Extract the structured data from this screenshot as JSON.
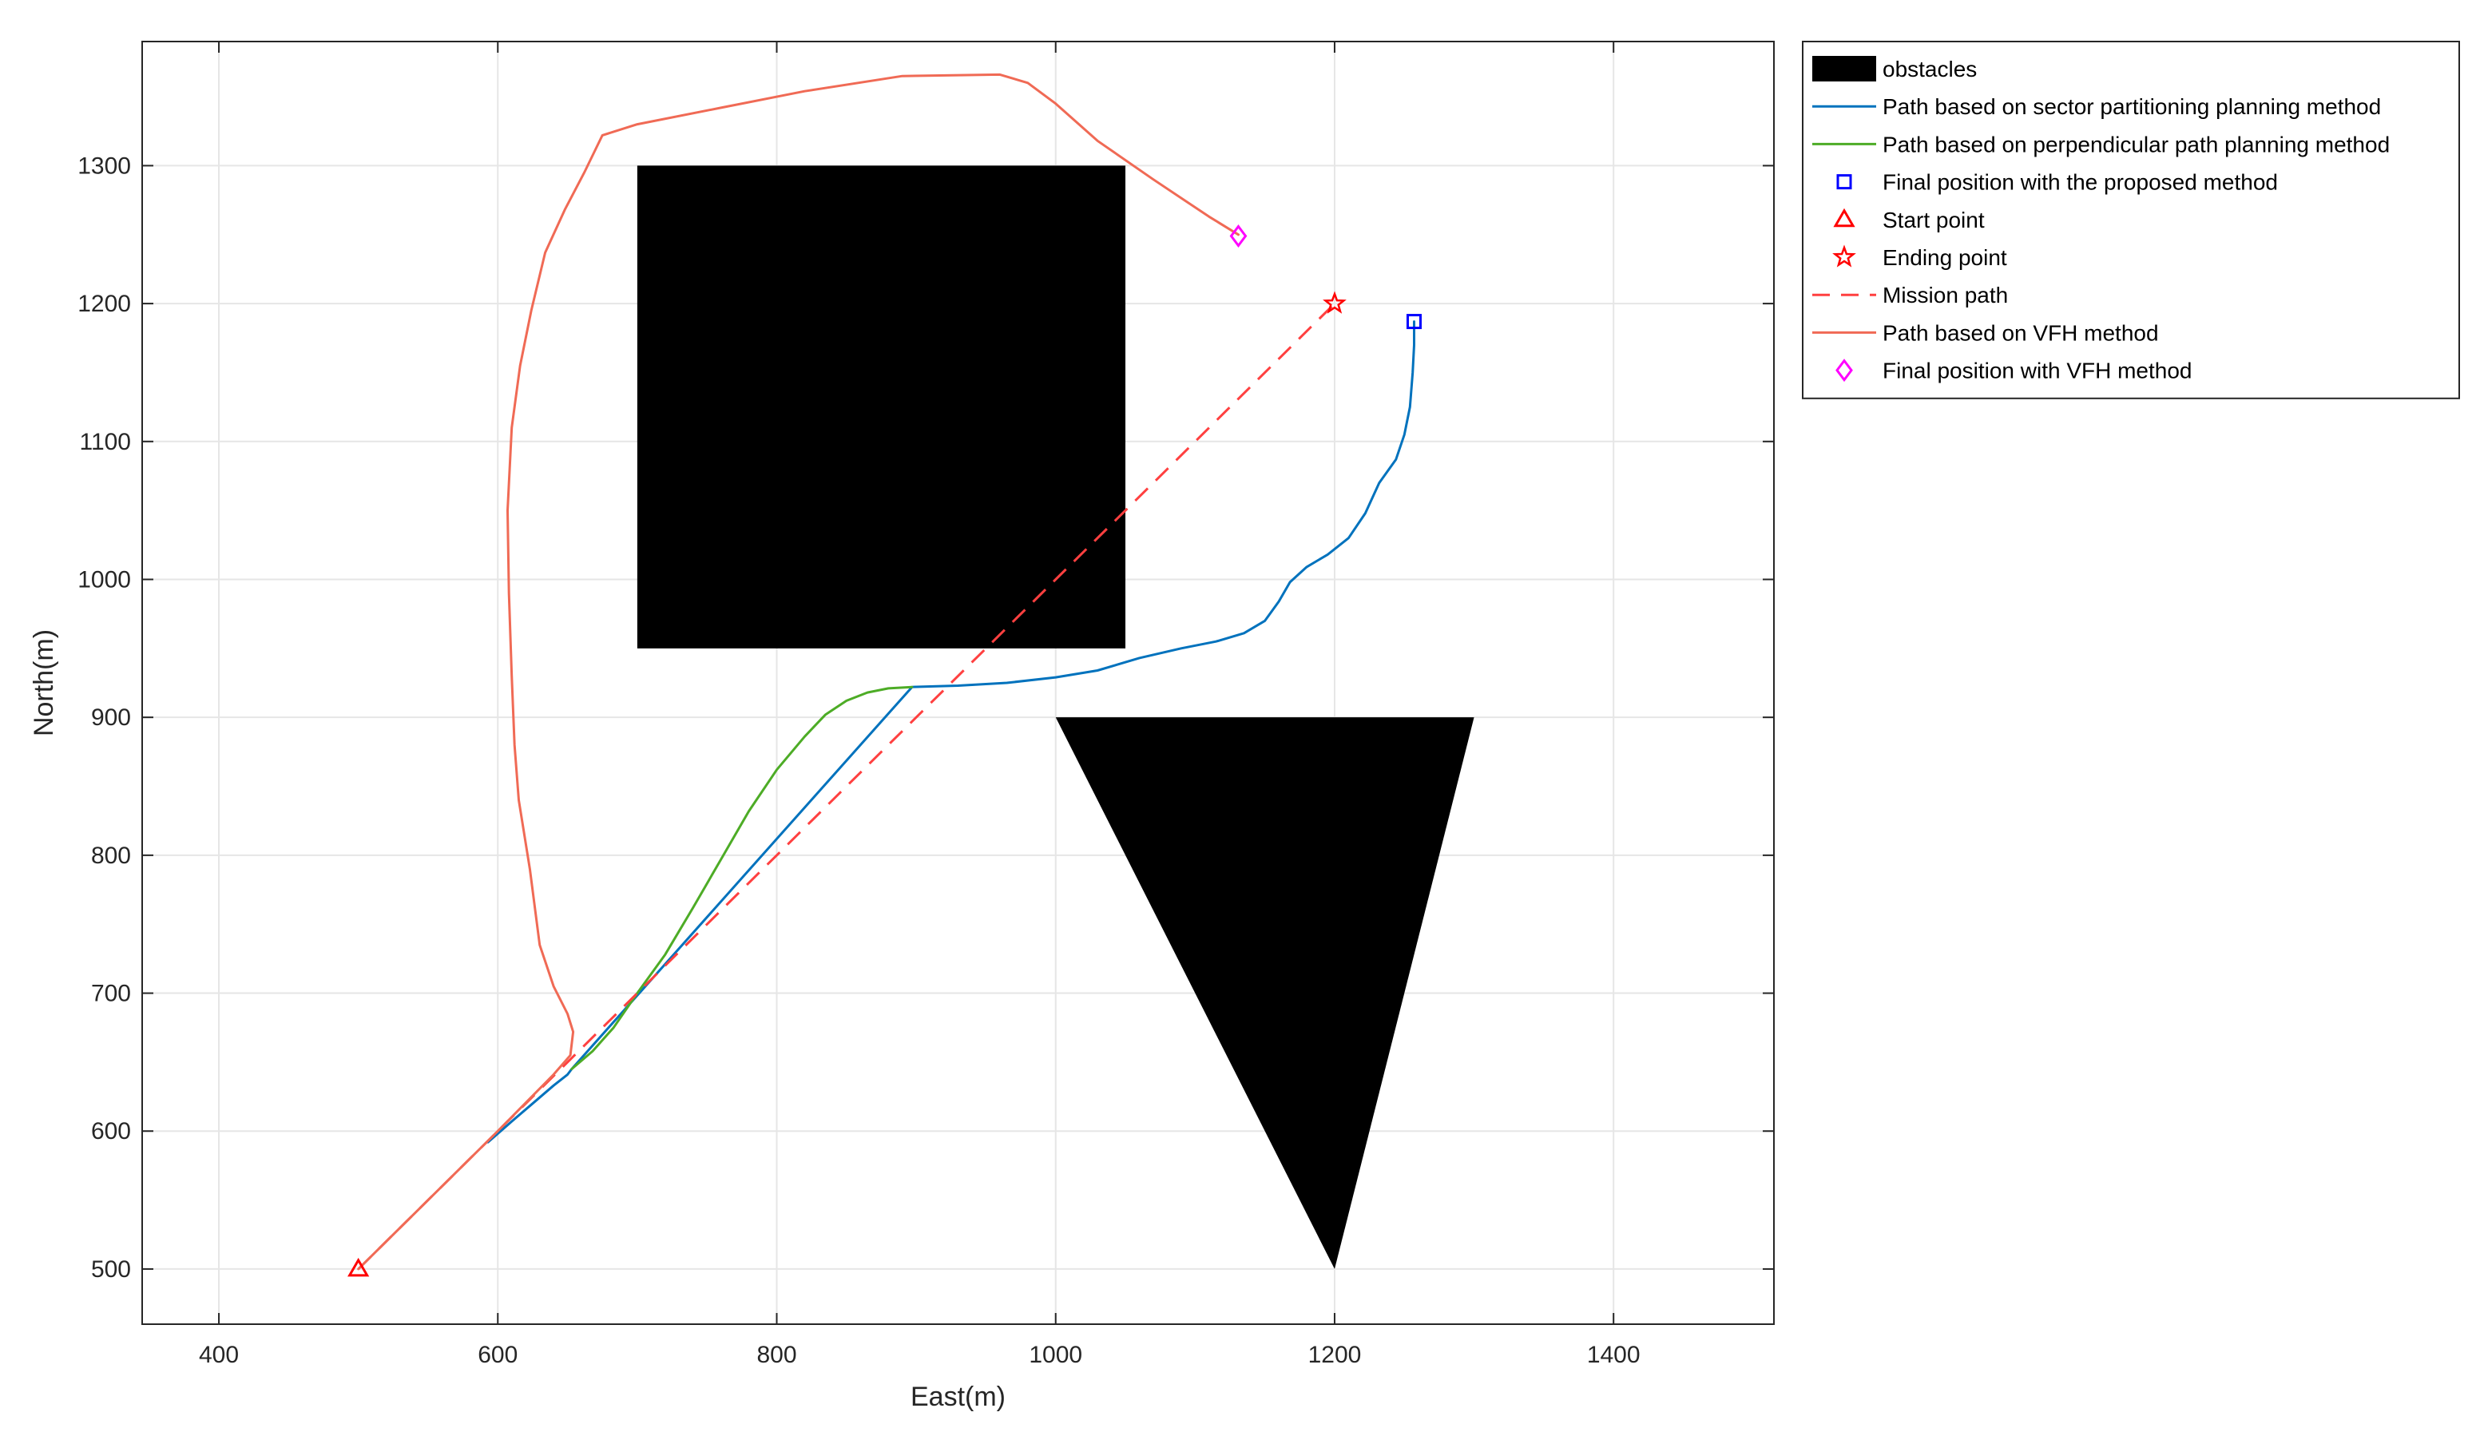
{
  "chart_data": {
    "type": "line",
    "xlabel": "East(m)",
    "ylabel": "North(m)",
    "xlim": [
      345,
      1515
    ],
    "ylim": [
      460,
      1390
    ],
    "xticks": [
      400,
      600,
      800,
      1000,
      1200,
      1400
    ],
    "yticks": [
      500,
      600,
      700,
      800,
      900,
      1000,
      1100,
      1200,
      1300
    ],
    "grid": true,
    "legend_position": "outside-top-right",
    "colors": {
      "obstacles": "#000000",
      "sector": "#0072BD",
      "perpendicular": "#4DAC26",
      "final_proposed": "#0000FF",
      "start": "#FF0000",
      "ending": "#FF0000",
      "mission": "#FF4040",
      "vfh": "#F06A55",
      "final_vfh": "#FF00FF"
    },
    "obstacles": [
      {
        "shape": "rectangle",
        "points": [
          [
            700,
            950
          ],
          [
            1050,
            950
          ],
          [
            1050,
            1300
          ],
          [
            700,
            1300
          ]
        ]
      },
      {
        "shape": "triangle",
        "points": [
          [
            1000,
            900
          ],
          [
            1300,
            900
          ],
          [
            1200,
            500
          ]
        ]
      }
    ],
    "series": [
      {
        "key": "sector",
        "name": "Path based on sector partitioning planning method",
        "points": [
          [
            593,
            592
          ],
          [
            610,
            607
          ],
          [
            625,
            620
          ],
          [
            640,
            633
          ],
          [
            650,
            641
          ],
          [
            653,
            645
          ],
          [
            897,
            922
          ],
          [
            930,
            923
          ],
          [
            965,
            925
          ],
          [
            1000,
            929
          ],
          [
            1030,
            934
          ],
          [
            1060,
            943
          ],
          [
            1090,
            950
          ],
          [
            1115,
            955
          ],
          [
            1135,
            961
          ],
          [
            1150,
            970
          ],
          [
            1160,
            984
          ],
          [
            1168,
            998
          ],
          [
            1180,
            1009
          ],
          [
            1195,
            1018
          ],
          [
            1210,
            1030
          ],
          [
            1222,
            1048
          ],
          [
            1232,
            1070
          ],
          [
            1244,
            1087
          ],
          [
            1250,
            1105
          ],
          [
            1254,
            1125
          ],
          [
            1256,
            1150
          ],
          [
            1257,
            1170
          ],
          [
            1257,
            1187
          ]
        ]
      },
      {
        "key": "perpendicular",
        "name": "Path based on perpendicular path planning method",
        "points": [
          [
            653,
            645
          ],
          [
            668,
            658
          ],
          [
            683,
            675
          ],
          [
            700,
            700
          ],
          [
            720,
            728
          ],
          [
            740,
            762
          ],
          [
            760,
            797
          ],
          [
            780,
            832
          ],
          [
            800,
            862
          ],
          [
            820,
            886
          ],
          [
            835,
            902
          ],
          [
            850,
            912
          ],
          [
            865,
            918
          ],
          [
            880,
            921
          ],
          [
            897,
            922
          ]
        ]
      },
      {
        "key": "mission",
        "name": "Mission path",
        "dashed": true,
        "points": [
          [
            500,
            500
          ],
          [
            1200,
            1200
          ]
        ]
      },
      {
        "key": "vfh",
        "name": "Path based on VFH method",
        "points": [
          [
            500,
            500
          ],
          [
            550,
            550
          ],
          [
            600,
            600
          ],
          [
            640,
            641
          ],
          [
            652,
            655
          ],
          [
            654,
            672
          ],
          [
            650,
            685
          ],
          [
            640,
            705
          ],
          [
            630,
            735
          ],
          [
            623,
            790
          ],
          [
            615,
            840
          ],
          [
            612,
            880
          ],
          [
            610,
            930
          ],
          [
            608,
            990
          ],
          [
            607,
            1050
          ],
          [
            610,
            1110
          ],
          [
            616,
            1155
          ],
          [
            624,
            1195
          ],
          [
            634,
            1237
          ],
          [
            648,
            1268
          ],
          [
            662,
            1295
          ],
          [
            675,
            1322
          ],
          [
            700,
            1330
          ],
          [
            760,
            1342
          ],
          [
            820,
            1354
          ],
          [
            890,
            1365
          ],
          [
            960,
            1366
          ],
          [
            980,
            1360
          ],
          [
            1000,
            1345
          ],
          [
            1030,
            1318
          ],
          [
            1070,
            1290
          ],
          [
            1110,
            1263
          ],
          [
            1131,
            1250
          ]
        ]
      }
    ],
    "markers": [
      {
        "key": "final_proposed",
        "name": "Final position with the proposed method",
        "shape": "square",
        "x": 1257,
        "y": 1187
      },
      {
        "key": "start",
        "name": "Start point",
        "shape": "triangle",
        "x": 500,
        "y": 500
      },
      {
        "key": "ending",
        "name": "Ending point",
        "shape": "star",
        "x": 1200,
        "y": 1200
      },
      {
        "key": "final_vfh",
        "name": "Final position with VFH method",
        "shape": "diamond",
        "x": 1131,
        "y": 1249
      }
    ],
    "legend": [
      {
        "label": "obstacles",
        "symbol": "patch",
        "key": "obstacles"
      },
      {
        "label": "Path based on sector partitioning planning method",
        "symbol": "line",
        "key": "sector"
      },
      {
        "label": "Path based on perpendicular path planning method",
        "symbol": "line",
        "key": "perpendicular"
      },
      {
        "label": "Final position with the proposed method",
        "symbol": "square",
        "key": "final_proposed"
      },
      {
        "label": "Start point",
        "symbol": "triangle",
        "key": "start"
      },
      {
        "label": "Ending point",
        "symbol": "star",
        "key": "ending"
      },
      {
        "label": "Mission path",
        "symbol": "dashed",
        "key": "mission"
      },
      {
        "label": "Path based on VFH method",
        "symbol": "line",
        "key": "vfh"
      },
      {
        "label": "Final position with VFH method",
        "symbol": "diamond",
        "key": "final_vfh"
      }
    ]
  }
}
